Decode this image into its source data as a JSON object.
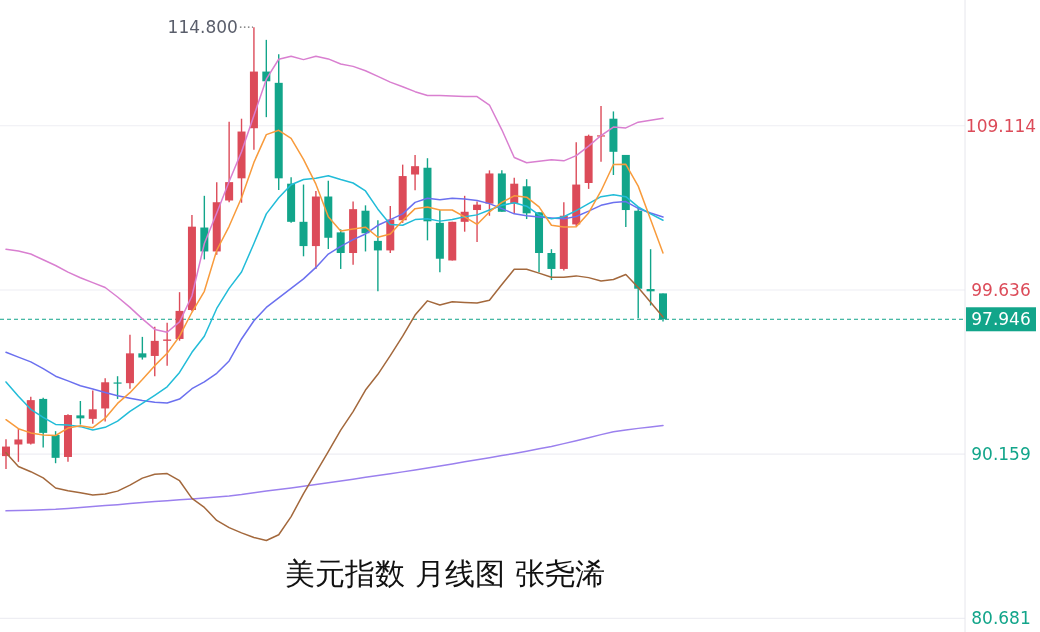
{
  "chart_data": {
    "type": "candlestick",
    "title": "美元指数 月线图 张尧浠",
    "categories": [
      null,
      null,
      null,
      null,
      null,
      null,
      null,
      null,
      null,
      null,
      null,
      null,
      null,
      null,
      null,
      null,
      null,
      null,
      null,
      null,
      null,
      null,
      null,
      null,
      null,
      null,
      null,
      null,
      null,
      null,
      null,
      null,
      null,
      null,
      null,
      null,
      null,
      null,
      null,
      null,
      null,
      null,
      null,
      null,
      null,
      null,
      null,
      null,
      null,
      null,
      null,
      null,
      null,
      null
    ],
    "ohlc": [
      [
        90.05,
        91.02,
        89.31,
        90.6
      ],
      [
        90.72,
        91.61,
        89.72,
        91.01
      ],
      [
        90.77,
        93.47,
        90.72,
        93.28
      ],
      [
        93.35,
        93.42,
        90.55,
        91.39
      ],
      [
        91.27,
        91.49,
        89.64,
        89.95
      ],
      [
        90.0,
        92.47,
        89.72,
        92.42
      ],
      [
        92.4,
        93.23,
        91.87,
        92.23
      ],
      [
        92.2,
        93.83,
        91.92,
        92.75
      ],
      [
        92.8,
        94.55,
        92.04,
        94.31
      ],
      [
        94.3,
        94.66,
        93.35,
        94.26
      ],
      [
        94.26,
        97.05,
        93.94,
        95.98
      ],
      [
        95.98,
        96.93,
        95.62,
        95.74
      ],
      [
        95.83,
        97.52,
        94.66,
        96.7
      ],
      [
        96.7,
        97.74,
        95.27,
        96.78
      ],
      [
        96.81,
        99.51,
        96.71,
        98.43
      ],
      [
        98.48,
        103.97,
        98.41,
        103.29
      ],
      [
        103.24,
        105.07,
        101.4,
        101.86
      ],
      [
        101.86,
        105.86,
        101.67,
        104.7
      ],
      [
        104.8,
        109.35,
        104.7,
        105.86
      ],
      [
        106.08,
        109.52,
        104.67,
        108.78
      ],
      [
        108.97,
        114.8,
        107.73,
        112.24
      ],
      [
        112.24,
        114.07,
        109.61,
        111.68
      ],
      [
        111.59,
        113.24,
        105.4,
        106.08
      ],
      [
        105.77,
        106.14,
        103.51,
        103.57
      ],
      [
        103.57,
        105.72,
        101.58,
        102.17
      ],
      [
        102.17,
        105.35,
        100.85,
        105.03
      ],
      [
        105.03,
        105.94,
        102.0,
        102.65
      ],
      [
        102.96,
        103.14,
        100.85,
        101.77
      ],
      [
        101.77,
        104.74,
        101.09,
        104.3
      ],
      [
        104.21,
        104.52,
        101.86,
        102.91
      ],
      [
        102.47,
        103.66,
        99.56,
        101.92
      ],
      [
        101.92,
        104.48,
        101.77,
        103.7
      ],
      [
        103.66,
        106.87,
        103.51,
        106.21
      ],
      [
        106.3,
        107.43,
        105.39,
        106.78
      ],
      [
        106.69,
        107.24,
        102.5,
        103.6
      ],
      [
        103.51,
        104.25,
        100.66,
        101.44
      ],
      [
        101.34,
        103.57,
        101.34,
        103.57
      ],
      [
        103.57,
        105.07,
        103.0,
        104.15
      ],
      [
        104.25,
        104.74,
        102.41,
        104.56
      ],
      [
        104.62,
        106.54,
        103.92,
        106.36
      ],
      [
        106.36,
        106.54,
        104.15,
        104.15
      ],
      [
        104.62,
        106.12,
        104.03,
        105.77
      ],
      [
        105.62,
        106.03,
        103.73,
        104.06
      ],
      [
        104.12,
        104.12,
        100.66,
        101.77
      ],
      [
        101.77,
        101.99,
        100.21,
        100.85
      ],
      [
        100.85,
        104.7,
        100.76,
        103.92
      ],
      [
        103.42,
        108.16,
        103.33,
        105.72
      ],
      [
        105.81,
        108.6,
        105.47,
        108.53
      ],
      [
        108.53,
        110.25,
        107.04,
        108.56
      ],
      [
        109.52,
        109.94,
        106.27,
        107.61
      ],
      [
        107.43,
        107.43,
        103.27,
        104.25
      ],
      [
        104.21,
        104.43,
        98.0,
        99.71
      ],
      [
        99.69,
        101.99,
        98.74,
        99.56
      ],
      [
        99.44,
        99.44,
        97.82,
        97.946
      ]
    ],
    "colors": [
      "#dc4b59",
      "#dc4b59",
      "#dc4b59",
      "#12a58a",
      "#12a58a",
      "#dc4b59",
      "#12a58a",
      "#dc4b59",
      "#dc4b59",
      "#12a58a",
      "#dc4b59",
      "#12a58a",
      "#dc4b59",
      "#dc4b59",
      "#dc4b59",
      "#dc4b59",
      "#12a58a",
      "#dc4b59",
      "#dc4b59",
      "#dc4b59",
      "#dc4b59",
      "#12a58a",
      "#12a58a",
      "#12a58a",
      "#12a58a",
      "#dc4b59",
      "#12a58a",
      "#12a58a",
      "#dc4b59",
      "#12a58a",
      "#12a58a",
      "#dc4b59",
      "#dc4b59",
      "#dc4b59",
      "#12a58a",
      "#12a58a",
      "#dc4b59",
      "#dc4b59",
      "#dc4b59",
      "#dc4b59",
      "#12a58a",
      "#dc4b59",
      "#12a58a",
      "#12a58a",
      "#12a58a",
      "#dc4b59",
      "#dc4b59",
      "#dc4b59",
      "#dc4b59",
      "#12a58a",
      "#12a58a",
      "#12a58a",
      "#12a58a",
      "#12a58a"
    ],
    "series": [
      {
        "type": "line",
        "color": "#9b80ee",
        "values": [
          86.89,
          86.91,
          86.93,
          86.96,
          86.98,
          87.03,
          87.08,
          87.14,
          87.2,
          87.25,
          87.31,
          87.37,
          87.43,
          87.48,
          87.53,
          87.58,
          87.63,
          87.69,
          87.75,
          87.83,
          87.93,
          88.03,
          88.12,
          88.21,
          88.31,
          88.41,
          88.51,
          88.62,
          88.72,
          88.83,
          88.93,
          89.03,
          89.14,
          89.25,
          89.37,
          89.48,
          89.6,
          89.72,
          89.84,
          89.96,
          90.08,
          90.2,
          90.33,
          90.47,
          90.6,
          90.77,
          90.94,
          91.11,
          91.29,
          91.46,
          91.56,
          91.65,
          91.73,
          91.82
        ]
      },
      {
        "type": "line",
        "color": "#a3683c",
        "values": [
          90.25,
          89.45,
          89.15,
          88.79,
          88.21,
          88.05,
          87.94,
          87.81,
          87.86,
          88.03,
          88.38,
          88.78,
          89.0,
          89.04,
          88.63,
          87.61,
          87.09,
          86.34,
          85.92,
          85.62,
          85.35,
          85.18,
          85.51,
          86.56,
          87.88,
          89.1,
          90.31,
          91.55,
          92.62,
          93.86,
          94.77,
          95.85,
          96.97,
          98.19,
          99.01,
          98.77,
          98.96,
          98.92,
          98.89,
          99.04,
          99.95,
          100.83,
          100.83,
          100.61,
          100.37,
          100.37,
          100.45,
          100.35,
          100.16,
          100.24,
          100.53,
          99.78,
          98.93,
          98.08
        ]
      },
      {
        "type": "line",
        "color": "#d97fd0",
        "values": [
          101.99,
          101.88,
          101.71,
          101.38,
          101.05,
          100.67,
          100.34,
          100.06,
          99.78,
          99.23,
          98.63,
          97.97,
          97.36,
          97.2,
          97.8,
          99.29,
          102.32,
          104.08,
          105.9,
          107.61,
          109.7,
          111.8,
          112.95,
          113.12,
          112.93,
          113.12,
          112.97,
          112.68,
          112.54,
          112.29,
          111.96,
          111.63,
          111.36,
          111.08,
          110.86,
          110.86,
          110.83,
          110.8,
          110.8,
          110.31,
          108.88,
          107.28,
          106.98,
          107.06,
          107.15,
          107.09,
          107.39,
          107.94,
          108.55,
          109.04,
          108.99,
          109.32,
          109.43,
          109.54
        ]
      },
      {
        "type": "line",
        "color": "#6b70ef",
        "values": [
          96.04,
          95.76,
          95.49,
          95.1,
          94.66,
          94.39,
          94.11,
          93.92,
          93.72,
          93.53,
          93.39,
          93.26,
          93.16,
          93.12,
          93.34,
          93.94,
          94.33,
          94.83,
          95.54,
          96.81,
          97.86,
          98.63,
          99.18,
          99.73,
          100.28,
          100.94,
          101.71,
          102.15,
          102.54,
          102.87,
          103.37,
          103.7,
          104.03,
          104.69,
          104.93,
          104.84,
          104.93,
          104.89,
          104.8,
          104.62,
          104.33,
          104.03,
          103.92,
          103.85,
          103.79,
          103.74,
          103.88,
          104.19,
          104.52,
          104.69,
          104.74,
          104.34,
          104.08,
          103.85
        ]
      },
      {
        "type": "line",
        "color": "#22bcd8",
        "values": [
          94.33,
          93.5,
          92.75,
          92.29,
          91.88,
          91.84,
          91.75,
          91.56,
          91.71,
          92.07,
          92.63,
          93.09,
          93.56,
          94.05,
          94.88,
          96.04,
          96.97,
          98.57,
          99.73,
          100.67,
          102.32,
          104.03,
          104.96,
          105.71,
          106.01,
          106.09,
          106.23,
          106.01,
          105.81,
          105.35,
          104.3,
          103.42,
          103.37,
          103.7,
          103.75,
          103.61,
          103.7,
          103.86,
          103.97,
          104.25,
          104.52,
          104.67,
          104.47,
          103.97,
          103.74,
          103.86,
          104.22,
          104.62,
          105.02,
          105.13,
          105.02,
          104.43,
          104.03,
          103.66
        ]
      },
      {
        "type": "line",
        "color": "#f89b3c",
        "values": [
          92.15,
          91.63,
          91.39,
          91.27,
          91.24,
          91.67,
          91.8,
          91.69,
          92.24,
          93.09,
          93.71,
          94.47,
          95.27,
          95.98,
          96.97,
          98.35,
          99.56,
          101.93,
          103.31,
          104.96,
          107.0,
          108.6,
          108.85,
          108.38,
          107.17,
          105.74,
          103.86,
          103.04,
          103.15,
          103.26,
          102.68,
          102.87,
          103.64,
          104.33,
          104.43,
          104.25,
          104.25,
          103.86,
          103.42,
          104.14,
          104.69,
          105.07,
          104.99,
          104.43,
          103.37,
          103.27,
          103.28,
          104.08,
          105.35,
          106.88,
          106.89,
          105.63,
          103.7,
          101.77
        ]
      }
    ],
    "ylim": [
      79.9,
      116.37
    ],
    "yticks": [
      80.681,
      90.159,
      99.636,
      109.114
    ],
    "grid": "y",
    "ref_lines": [
      {
        "axis": "y",
        "value": 97.946,
        "label": "97.946",
        "color": "#12a58a",
        "line_style": "dashed"
      }
    ],
    "annotations": [
      "114.800"
    ]
  }
}
